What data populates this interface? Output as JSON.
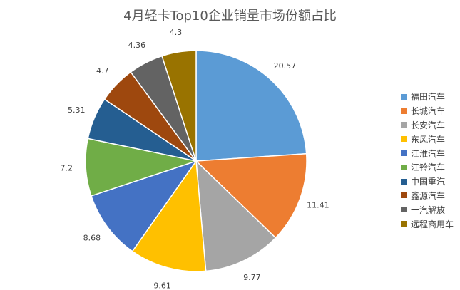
{
  "chart_data": {
    "type": "pie",
    "title": "4月轻卡Top10企业销量市场份额占比",
    "categories": [
      "福田汽车",
      "长城汽车",
      "长安汽车",
      "东风汽车",
      "江淮汽车",
      "江铃汽车",
      "中国重汽",
      "鑫源汽车",
      "一汽解放",
      "远程商用车"
    ],
    "values": [
      20.57,
      11.41,
      9.77,
      9.61,
      8.68,
      7.2,
      5.31,
      4.7,
      4.36,
      4.3
    ],
    "value_labels": [
      "20.57",
      "11.41",
      "9.77",
      "9.61",
      "8.68",
      "7.2",
      "5.31",
      "4.7",
      "4.36",
      "4.3"
    ],
    "colors": [
      "#5B9BD5",
      "#ED7D31",
      "#A5A5A5",
      "#FFC000",
      "#4472C4",
      "#70AD47",
      "#255E91",
      "#9E480E",
      "#636363",
      "#997300"
    ],
    "start_angle": "12 o'clock",
    "direction": "clockwise",
    "legend_position": "right",
    "data_labels": "outside"
  }
}
